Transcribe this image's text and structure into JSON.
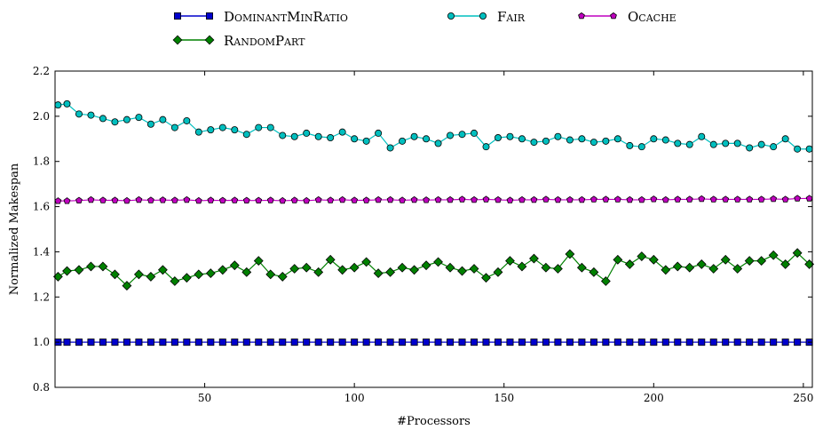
{
  "chart_data": {
    "type": "line",
    "xlabel": "#Processors",
    "ylabel": "Normalized Makespan",
    "xlim": [
      0,
      253
    ],
    "ylim": [
      0.8,
      2.2
    ],
    "xticks": [
      50,
      100,
      150,
      200,
      250
    ],
    "yticks": [
      0.8,
      1.0,
      1.2,
      1.4,
      1.6,
      1.8,
      2.0,
      2.2
    ],
    "xtick_labels": [
      "50",
      "100",
      "150",
      "200",
      "250"
    ],
    "ytick_labels": [
      "0.8",
      "1.0",
      "1.2",
      "1.4",
      "1.6",
      "1.8",
      "2.0",
      "2.2"
    ],
    "grid": false,
    "legend_position": "top-center, outside plot",
    "series": [
      {
        "name": "DominantMinRatio",
        "color": "#0000cc",
        "marker": "square",
        "x": [
          1,
          4,
          8,
          12,
          16,
          20,
          24,
          28,
          32,
          36,
          40,
          44,
          48,
          52,
          56,
          60,
          64,
          68,
          72,
          76,
          80,
          84,
          88,
          92,
          96,
          100,
          104,
          108,
          112,
          116,
          120,
          124,
          128,
          132,
          136,
          140,
          144,
          148,
          152,
          156,
          160,
          164,
          168,
          172,
          176,
          180,
          184,
          188,
          192,
          196,
          200,
          204,
          208,
          212,
          216,
          220,
          224,
          228,
          232,
          236,
          240,
          244,
          248,
          252
        ],
        "values": [
          1.0,
          1.0,
          1.0,
          1.0,
          1.0,
          1.0,
          1.0,
          1.0,
          1.0,
          1.0,
          1.0,
          1.0,
          1.0,
          1.0,
          1.0,
          1.0,
          1.0,
          1.0,
          1.0,
          1.0,
          1.0,
          1.0,
          1.0,
          1.0,
          1.0,
          1.0,
          1.0,
          1.0,
          1.0,
          1.0,
          1.0,
          1.0,
          1.0,
          1.0,
          1.0,
          1.0,
          1.0,
          1.0,
          1.0,
          1.0,
          1.0,
          1.0,
          1.0,
          1.0,
          1.0,
          1.0,
          1.0,
          1.0,
          1.0,
          1.0,
          1.0,
          1.0,
          1.0,
          1.0,
          1.0,
          1.0,
          1.0,
          1.0,
          1.0,
          1.0,
          1.0,
          1.0,
          1.0,
          1.0
        ]
      },
      {
        "name": "Fair",
        "color": "#00bfbf",
        "marker": "circle",
        "x": [
          1,
          4,
          8,
          12,
          16,
          20,
          24,
          28,
          32,
          36,
          40,
          44,
          48,
          52,
          56,
          60,
          64,
          68,
          72,
          76,
          80,
          84,
          88,
          92,
          96,
          100,
          104,
          108,
          112,
          116,
          120,
          124,
          128,
          132,
          136,
          140,
          144,
          148,
          152,
          156,
          160,
          164,
          168,
          172,
          176,
          180,
          184,
          188,
          192,
          196,
          200,
          204,
          208,
          212,
          216,
          220,
          224,
          228,
          232,
          236,
          240,
          244,
          248,
          252
        ],
        "values": [
          2.05,
          2.055,
          2.01,
          2.005,
          1.99,
          1.975,
          1.985,
          1.995,
          1.965,
          1.985,
          1.95,
          1.98,
          1.93,
          1.94,
          1.95,
          1.94,
          1.92,
          1.95,
          1.95,
          1.915,
          1.91,
          1.925,
          1.91,
          1.905,
          1.93,
          1.9,
          1.89,
          1.925,
          1.86,
          1.89,
          1.91,
          1.9,
          1.88,
          1.915,
          1.92,
          1.925,
          1.865,
          1.905,
          1.91,
          1.9,
          1.885,
          1.89,
          1.91,
          1.895,
          1.9,
          1.885,
          1.89,
          1.9,
          1.87,
          1.865,
          1.9,
          1.895,
          1.88,
          1.875,
          1.91,
          1.875,
          1.88,
          1.88,
          1.86,
          1.875,
          1.865,
          1.9,
          1.855,
          1.855
        ]
      },
      {
        "name": "Ocache",
        "color": "#bf00bf",
        "marker": "pentagon",
        "x": [
          1,
          4,
          8,
          12,
          16,
          20,
          24,
          28,
          32,
          36,
          40,
          44,
          48,
          52,
          56,
          60,
          64,
          68,
          72,
          76,
          80,
          84,
          88,
          92,
          96,
          100,
          104,
          108,
          112,
          116,
          120,
          124,
          128,
          132,
          136,
          140,
          144,
          148,
          152,
          156,
          160,
          164,
          168,
          172,
          176,
          180,
          184,
          188,
          192,
          196,
          200,
          204,
          208,
          212,
          216,
          220,
          224,
          228,
          232,
          236,
          240,
          244,
          248,
          252
        ],
        "values": [
          1.625,
          1.625,
          1.627,
          1.63,
          1.628,
          1.628,
          1.626,
          1.63,
          1.628,
          1.629,
          1.628,
          1.63,
          1.626,
          1.628,
          1.627,
          1.628,
          1.627,
          1.627,
          1.628,
          1.626,
          1.628,
          1.626,
          1.63,
          1.628,
          1.63,
          1.628,
          1.628,
          1.63,
          1.63,
          1.628,
          1.63,
          1.629,
          1.63,
          1.63,
          1.632,
          1.63,
          1.632,
          1.63,
          1.628,
          1.63,
          1.63,
          1.632,
          1.63,
          1.63,
          1.63,
          1.632,
          1.632,
          1.632,
          1.63,
          1.63,
          1.633,
          1.63,
          1.632,
          1.632,
          1.634,
          1.632,
          1.632,
          1.632,
          1.632,
          1.632,
          1.634,
          1.632,
          1.636,
          1.636
        ]
      },
      {
        "name": "RandomPart",
        "color": "#008000",
        "marker": "diamond",
        "x": [
          1,
          4,
          8,
          12,
          16,
          20,
          24,
          28,
          32,
          36,
          40,
          44,
          48,
          52,
          56,
          60,
          64,
          68,
          72,
          76,
          80,
          84,
          88,
          92,
          96,
          100,
          104,
          108,
          112,
          116,
          120,
          124,
          128,
          132,
          136,
          140,
          144,
          148,
          152,
          156,
          160,
          164,
          168,
          172,
          176,
          180,
          184,
          188,
          192,
          196,
          200,
          204,
          208,
          212,
          216,
          220,
          224,
          228,
          232,
          236,
          240,
          244,
          248,
          252
        ],
        "values": [
          1.29,
          1.315,
          1.32,
          1.335,
          1.335,
          1.3,
          1.25,
          1.3,
          1.29,
          1.32,
          1.27,
          1.285,
          1.3,
          1.305,
          1.32,
          1.34,
          1.31,
          1.36,
          1.3,
          1.29,
          1.325,
          1.33,
          1.31,
          1.365,
          1.32,
          1.33,
          1.355,
          1.305,
          1.31,
          1.33,
          1.32,
          1.34,
          1.355,
          1.33,
          1.315,
          1.325,
          1.285,
          1.31,
          1.36,
          1.335,
          1.37,
          1.33,
          1.325,
          1.39,
          1.33,
          1.31,
          1.27,
          1.365,
          1.345,
          1.38,
          1.365,
          1.32,
          1.335,
          1.33,
          1.345,
          1.325,
          1.365,
          1.325,
          1.36,
          1.36,
          1.385,
          1.345,
          1.395,
          1.345
        ]
      }
    ]
  }
}
